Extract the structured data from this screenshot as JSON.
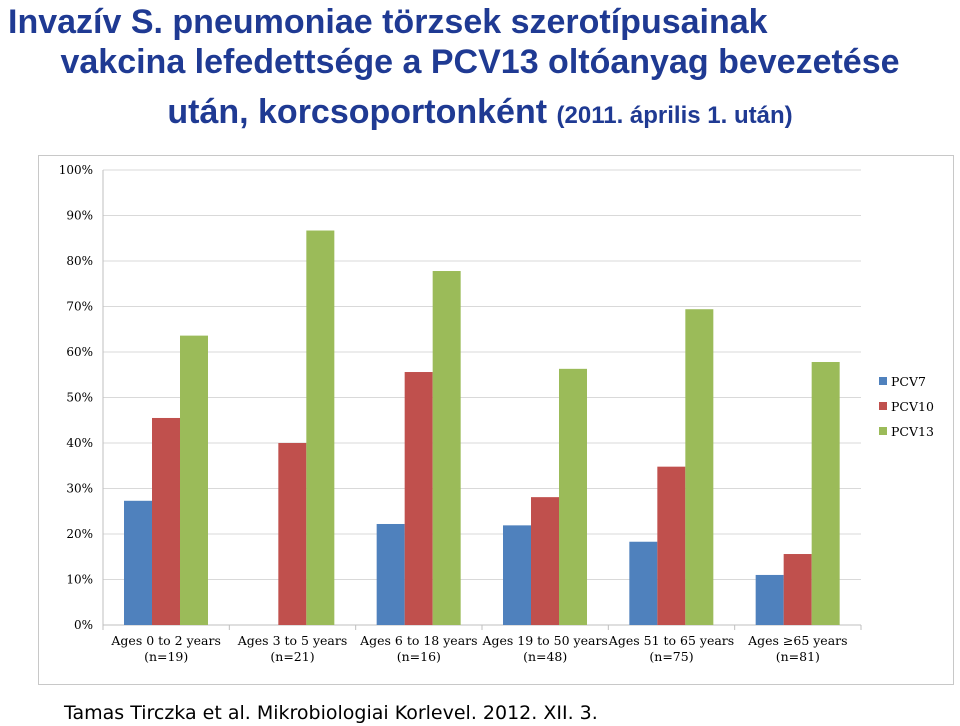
{
  "title": {
    "line1": "Invazív S. pneumoniae törzsek szerotípusainak",
    "line2": "vakcina lefedettsége a PCV13 oltóanyag bevezetése",
    "line3_main": "után, korcsoportonként",
    "line3_small": "(2011. április 1. után)"
  },
  "caption": "Tamas Tirczka et al. Mikrobiologiai Korlevel. 2012. XII. 3.",
  "chart_data": {
    "type": "bar",
    "categories": [
      "Ages 0 to 2 years (n=19)",
      "Ages 3 to 5 years (n=21)",
      "Ages 6 to 18 years (n=16)",
      "Ages 19 to 50 years (n=48)",
      "Ages 51 to 65 years (n=75)",
      "Ages ≥65 years (n=81)"
    ],
    "category_lines": [
      [
        "Ages 0 to 2 years",
        "(n=19)"
      ],
      [
        "Ages 3 to 5 years",
        "(n=21)"
      ],
      [
        "Ages 6 to 18 years",
        "(n=16)"
      ],
      [
        "Ages 19 to 50 years",
        "(n=48)"
      ],
      [
        "Ages 51 to 65 years",
        "(n=75)"
      ],
      [
        "Ages ≥65 years",
        "(n=81)"
      ]
    ],
    "series": [
      {
        "name": "PCV7",
        "color": "#4f81bd",
        "values": [
          27.3,
          0,
          22.2,
          21.9,
          18.3,
          11.0
        ]
      },
      {
        "name": "PCV10",
        "color": "#c0504d",
        "values": [
          45.5,
          40.0,
          55.6,
          28.1,
          34.8,
          15.6
        ]
      },
      {
        "name": "PCV13",
        "color": "#9bbb59",
        "values": [
          63.6,
          86.7,
          77.8,
          56.3,
          69.4,
          57.8
        ]
      }
    ],
    "yticks": [
      "0%",
      "10%",
      "20%",
      "30%",
      "40%",
      "50%",
      "60%",
      "70%",
      "80%",
      "90%",
      "100%"
    ],
    "ylim": [
      0,
      100
    ],
    "grid": true,
    "legend_position": "right"
  }
}
